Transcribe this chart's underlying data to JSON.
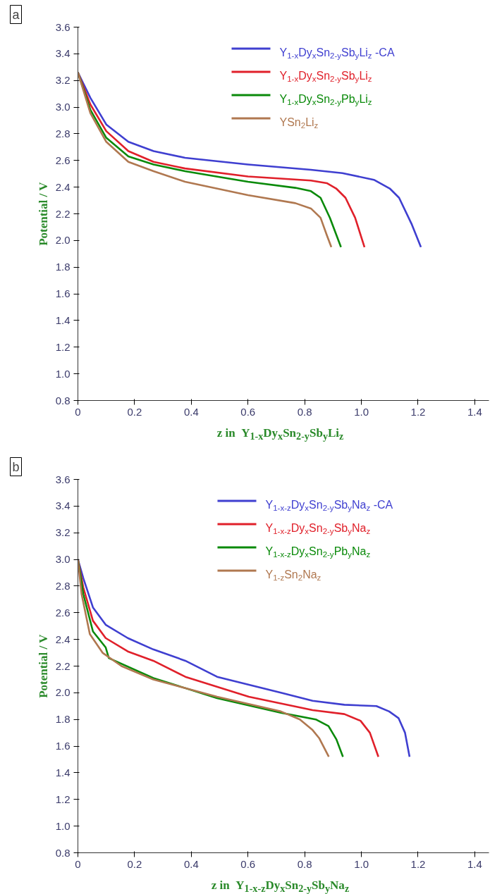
{
  "chart_data": [
    {
      "type": "line",
      "annotations": [
        "a"
      ],
      "xlabel": "z in  Y$_{1-x}$Dy$_{x}$Sn$_{2-y}$Sb$_{y}$Li$_{z}$",
      "ylabel": "Potential / V",
      "xlim": [
        0,
        1.45
      ],
      "ylim": [
        0.8,
        3.6
      ],
      "xticks": [
        0,
        0.2,
        0.4,
        0.6,
        0.8,
        {
          "value": 1.0,
          "label": "1.0"
        },
        1.2,
        1.4
      ],
      "yticks": [
        0.8,
        {
          "value": 1.0,
          "label": "1.0"
        },
        1.2,
        1.4,
        1.6,
        1.8,
        {
          "value": 2.0,
          "label": "2.0"
        },
        2.2,
        2.4,
        2.6,
        2.8,
        {
          "value": 3.0,
          "label": "3.0"
        },
        3.2,
        3.4,
        3.6
      ],
      "grid": false,
      "legend": "top right",
      "marker": "none",
      "line_style": "solid",
      "series": [
        {
          "name": "Y$_{1-x}$Dy$_{x}$Sn$_{2-y}$Sb$_{y}$Li$_{z}$ -CA",
          "color": "#3f3fd0",
          "x": [
            0,
            0.044,
            0.1,
            0.178,
            0.267,
            0.378,
            0.6,
            0.822,
            0.933,
            1.044,
            1.1,
            1.133,
            1.178,
            1.21
          ],
          "values": [
            3.26,
            3.07,
            2.87,
            2.74,
            2.67,
            2.62,
            2.57,
            2.53,
            2.505,
            2.455,
            2.39,
            2.32,
            2.12,
            1.95
          ]
        },
        {
          "name": "Y$_{1-x}$Dy$_{x}$Sn$_{2-y}$Sb$_{y}$Li$_{z}$",
          "color": "#e0202a",
          "x": [
            0,
            0.044,
            0.1,
            0.178,
            0.267,
            0.378,
            0.6,
            0.822,
            0.878,
            0.911,
            0.944,
            0.978,
            1.011
          ],
          "values": [
            3.26,
            3.02,
            2.82,
            2.67,
            2.59,
            2.54,
            2.48,
            2.45,
            2.43,
            2.39,
            2.32,
            2.17,
            1.95
          ]
        },
        {
          "name": "Y$_{1-x}$Dy$_{x}$Sn$_{2-y}$Pb$_{y}$Li$_{z}$",
          "color": "#0a8a0a",
          "x": [
            0,
            0.044,
            0.1,
            0.178,
            0.267,
            0.378,
            0.6,
            0.767,
            0.822,
            0.856,
            0.889,
            0.928
          ],
          "values": [
            3.26,
            2.98,
            2.77,
            2.63,
            2.57,
            2.52,
            2.44,
            2.395,
            2.37,
            2.32,
            2.17,
            1.95
          ]
        },
        {
          "name": "YSn$_{2}$Li$_{z}$",
          "color": "#b07850",
          "x": [
            0,
            0.044,
            0.1,
            0.178,
            0.267,
            0.378,
            0.6,
            0.767,
            0.822,
            0.856,
            0.878,
            0.894
          ],
          "values": [
            3.26,
            2.955,
            2.74,
            2.59,
            2.52,
            2.44,
            2.34,
            2.28,
            2.24,
            2.17,
            2.04,
            1.95
          ]
        }
      ]
    },
    {
      "type": "line",
      "annotations": [
        "b"
      ],
      "xlabel": "z in  Y$_{1-x-z}$Dy$_{x}$Sn$_{2-y}$Sb$_{y}$Na$_{z}$",
      "ylabel": "Potential / V",
      "xlim": [
        0,
        1.45
      ],
      "ylim": [
        0.8,
        3.6
      ],
      "xticks": [
        0,
        0.2,
        0.4,
        0.6,
        0.8,
        {
          "value": 1.0,
          "label": "1.0"
        },
        1.2,
        1.4
      ],
      "yticks": [
        0.8,
        {
          "value": 1.0,
          "label": "1.0"
        },
        1.2,
        1.4,
        1.6,
        1.8,
        {
          "value": 2.0,
          "label": "2.0"
        },
        2.2,
        2.4,
        2.6,
        2.8,
        {
          "value": 3.0,
          "label": "3.0"
        },
        3.2,
        3.4,
        3.6
      ],
      "grid": false,
      "legend": "top right",
      "marker": "none",
      "line_style": "solid",
      "series": [
        {
          "name": "Y$_{1-x-z}$Dy$_{x}$Sn$_{2-y}$Sb$_{y}$Na$_{z}$ -CA",
          "color": "#3f3fd0",
          "x": [
            0,
            0.019,
            0.053,
            0.098,
            0.176,
            0.266,
            0.379,
            0.491,
            0.716,
            0.828,
            0.94,
            1.053,
            1.098,
            1.131,
            1.154,
            1.17
          ],
          "values": [
            3.0,
            2.86,
            2.64,
            2.51,
            2.41,
            2.325,
            2.24,
            2.12,
            2.0,
            1.94,
            1.91,
            1.9,
            1.86,
            1.81,
            1.7,
            1.52
          ]
        },
        {
          "name": "Y$_{1-x-z}$Dy$_{x}$Sn$_{2-y}$Sb$_{y}$Na$_{z}$",
          "color": "#e0202a",
          "x": [
            0,
            0.019,
            0.053,
            0.098,
            0.176,
            0.266,
            0.379,
            0.603,
            0.828,
            0.94,
            0.997,
            1.03,
            1.06
          ],
          "values": [
            3.0,
            2.79,
            2.54,
            2.41,
            2.31,
            2.24,
            2.12,
            1.97,
            1.87,
            1.84,
            1.79,
            1.7,
            1.52
          ]
        },
        {
          "name": "Y$_{1-x-z}$Dy$_{x}$Sn$_{2-y}$Pb$_{y}$Na$_{z}$",
          "color": "#0a8a0a",
          "x": [
            0,
            0.019,
            0.053,
            0.098,
            0.109,
            0.266,
            0.491,
            0.716,
            0.839,
            0.884,
            0.912,
            0.935
          ],
          "values": [
            3.0,
            2.74,
            2.46,
            2.34,
            2.26,
            2.11,
            1.96,
            1.85,
            1.8,
            1.75,
            1.65,
            1.52
          ]
        },
        {
          "name": "Y$_{1-z}$Sn$_{2}$Na$_{z}$",
          "color": "#b07850",
          "x": [
            0,
            0.013,
            0.042,
            0.087,
            0.154,
            0.266,
            0.491,
            0.716,
            0.783,
            0.828,
            0.851,
            0.885
          ],
          "values": [
            3.0,
            2.74,
            2.44,
            2.3,
            2.2,
            2.1,
            1.97,
            1.86,
            1.8,
            1.72,
            1.66,
            1.52
          ]
        }
      ]
    }
  ]
}
